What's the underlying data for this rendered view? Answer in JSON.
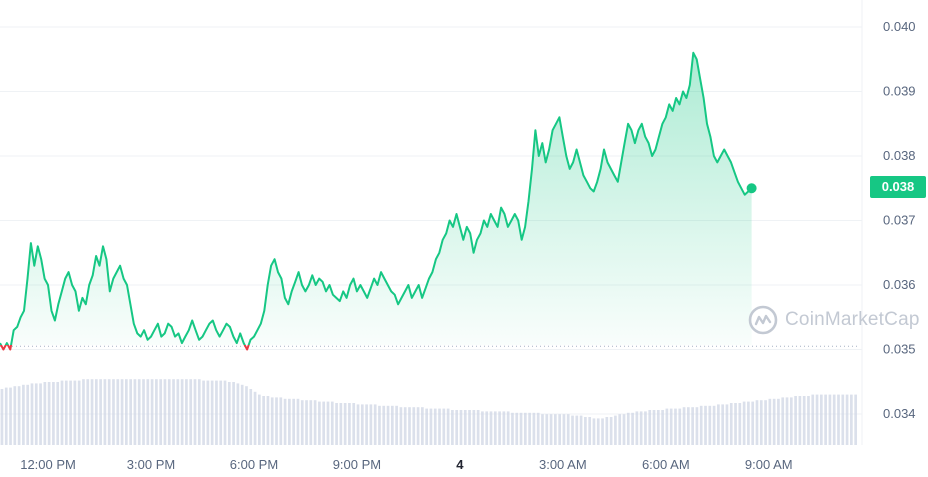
{
  "chart_data": {
    "type": "line",
    "title": "",
    "xlabel": "",
    "ylabel": "",
    "ylim": [
      0.0335,
      0.0405
    ],
    "baseline": 0.03505,
    "y_ticks": [
      "0.040",
      "0.039",
      "0.038",
      "0.037",
      "0.036",
      "0.035",
      "0.034"
    ],
    "x_ticks": [
      {
        "label": "12:00 PM",
        "x": 12,
        "bold": false
      },
      {
        "label": "3:00 PM",
        "x": 15,
        "bold": false
      },
      {
        "label": "6:00 PM",
        "x": 18,
        "bold": false
      },
      {
        "label": "9:00 PM",
        "x": 21,
        "bold": false
      },
      {
        "label": "4",
        "x": 24,
        "bold": true
      },
      {
        "label": "3:00 AM",
        "x": 27,
        "bold": false
      },
      {
        "label": "6:00 AM",
        "x": 30,
        "bold": false
      },
      {
        "label": "9:00 AM",
        "x": 33,
        "bold": false
      }
    ],
    "x_range": [
      10.6,
      35.6
    ],
    "last_price_label": "0.038",
    "colors": {
      "up": "#16c784",
      "down": "#ea3943",
      "grid": "#eff2f5",
      "volume": "#cfd6e4"
    },
    "series": [
      {
        "values": [
          [
            10.6,
            0.0351
          ],
          [
            10.7,
            0.035
          ],
          [
            10.8,
            0.0351
          ],
          [
            10.9,
            0.035
          ],
          [
            11.0,
            0.0353
          ],
          [
            11.1,
            0.03535
          ],
          [
            11.2,
            0.0355
          ],
          [
            11.3,
            0.0356
          ],
          [
            11.4,
            0.0361
          ],
          [
            11.5,
            0.03665
          ],
          [
            11.6,
            0.0363
          ],
          [
            11.7,
            0.0366
          ],
          [
            11.8,
            0.0364
          ],
          [
            11.9,
            0.0361
          ],
          [
            12.0,
            0.036
          ],
          [
            12.1,
            0.0356
          ],
          [
            12.2,
            0.03545
          ],
          [
            12.3,
            0.0357
          ],
          [
            12.4,
            0.0359
          ],
          [
            12.5,
            0.0361
          ],
          [
            12.6,
            0.0362
          ],
          [
            12.7,
            0.036
          ],
          [
            12.8,
            0.0359
          ],
          [
            12.9,
            0.0356
          ],
          [
            13.0,
            0.0358
          ],
          [
            13.1,
            0.0357
          ],
          [
            13.2,
            0.036
          ],
          [
            13.3,
            0.03615
          ],
          [
            13.4,
            0.03645
          ],
          [
            13.5,
            0.0363
          ],
          [
            13.6,
            0.0366
          ],
          [
            13.7,
            0.0364
          ],
          [
            13.8,
            0.0359
          ],
          [
            13.9,
            0.0361
          ],
          [
            14.0,
            0.0362
          ],
          [
            14.1,
            0.0363
          ],
          [
            14.2,
            0.0361
          ],
          [
            14.3,
            0.036
          ],
          [
            14.4,
            0.0357
          ],
          [
            14.5,
            0.0354
          ],
          [
            14.6,
            0.03525
          ],
          [
            14.7,
            0.0352
          ],
          [
            14.8,
            0.0353
          ],
          [
            14.9,
            0.03515
          ],
          [
            15.0,
            0.0352
          ],
          [
            15.1,
            0.0353
          ],
          [
            15.2,
            0.0354
          ],
          [
            15.3,
            0.0352
          ],
          [
            15.4,
            0.03525
          ],
          [
            15.5,
            0.0354
          ],
          [
            15.6,
            0.03535
          ],
          [
            15.7,
            0.0352
          ],
          [
            15.8,
            0.03525
          ],
          [
            15.9,
            0.0351
          ],
          [
            16.0,
            0.0352
          ],
          [
            16.1,
            0.0353
          ],
          [
            16.2,
            0.03545
          ],
          [
            16.3,
            0.0353
          ],
          [
            16.4,
            0.03515
          ],
          [
            16.5,
            0.0352
          ],
          [
            16.6,
            0.0353
          ],
          [
            16.7,
            0.0354
          ],
          [
            16.8,
            0.03545
          ],
          [
            16.9,
            0.0353
          ],
          [
            17.0,
            0.0352
          ],
          [
            17.1,
            0.0353
          ],
          [
            17.2,
            0.0354
          ],
          [
            17.3,
            0.03535
          ],
          [
            17.4,
            0.0352
          ],
          [
            17.5,
            0.0351
          ],
          [
            17.6,
            0.03525
          ],
          [
            17.7,
            0.0351
          ],
          [
            17.8,
            0.035
          ],
          [
            17.9,
            0.03515
          ],
          [
            18.0,
            0.0352
          ],
          [
            18.1,
            0.0353
          ],
          [
            18.2,
            0.0354
          ],
          [
            18.3,
            0.0356
          ],
          [
            18.4,
            0.036
          ],
          [
            18.5,
            0.0363
          ],
          [
            18.6,
            0.0364
          ],
          [
            18.7,
            0.0362
          ],
          [
            18.8,
            0.0361
          ],
          [
            18.9,
            0.0358
          ],
          [
            19.0,
            0.0357
          ],
          [
            19.1,
            0.0359
          ],
          [
            19.2,
            0.03605
          ],
          [
            19.3,
            0.0362
          ],
          [
            19.4,
            0.036
          ],
          [
            19.5,
            0.0359
          ],
          [
            19.6,
            0.036
          ],
          [
            19.7,
            0.03615
          ],
          [
            19.8,
            0.036
          ],
          [
            19.9,
            0.0361
          ],
          [
            20.0,
            0.03605
          ],
          [
            20.1,
            0.0359
          ],
          [
            20.2,
            0.036
          ],
          [
            20.3,
            0.03585
          ],
          [
            20.4,
            0.0358
          ],
          [
            20.5,
            0.03575
          ],
          [
            20.6,
            0.0359
          ],
          [
            20.7,
            0.0358
          ],
          [
            20.8,
            0.036
          ],
          [
            20.9,
            0.0361
          ],
          [
            21.0,
            0.0359
          ],
          [
            21.1,
            0.036
          ],
          [
            21.2,
            0.0359
          ],
          [
            21.3,
            0.0358
          ],
          [
            21.4,
            0.03595
          ],
          [
            21.5,
            0.0361
          ],
          [
            21.6,
            0.036
          ],
          [
            21.7,
            0.0362
          ],
          [
            21.8,
            0.0361
          ],
          [
            21.9,
            0.036
          ],
          [
            22.0,
            0.0359
          ],
          [
            22.1,
            0.03585
          ],
          [
            22.2,
            0.0357
          ],
          [
            22.3,
            0.0358
          ],
          [
            22.4,
            0.0359
          ],
          [
            22.5,
            0.036
          ],
          [
            22.6,
            0.0358
          ],
          [
            22.7,
            0.0359
          ],
          [
            22.8,
            0.036
          ],
          [
            22.9,
            0.0358
          ],
          [
            23.0,
            0.03595
          ],
          [
            23.1,
            0.0361
          ],
          [
            23.2,
            0.0362
          ],
          [
            23.3,
            0.0364
          ],
          [
            23.4,
            0.0365
          ],
          [
            23.5,
            0.0367
          ],
          [
            23.6,
            0.0368
          ],
          [
            23.7,
            0.037
          ],
          [
            23.8,
            0.0369
          ],
          [
            23.9,
            0.0371
          ],
          [
            24.0,
            0.0369
          ],
          [
            24.1,
            0.0367
          ],
          [
            24.2,
            0.0369
          ],
          [
            24.3,
            0.0368
          ],
          [
            24.4,
            0.0365
          ],
          [
            24.5,
            0.0367
          ],
          [
            24.6,
            0.0368
          ],
          [
            24.7,
            0.037
          ],
          [
            24.8,
            0.0369
          ],
          [
            24.9,
            0.0371
          ],
          [
            25.0,
            0.037
          ],
          [
            25.1,
            0.0369
          ],
          [
            25.2,
            0.0372
          ],
          [
            25.3,
            0.0371
          ],
          [
            25.4,
            0.0369
          ],
          [
            25.5,
            0.037
          ],
          [
            25.6,
            0.0371
          ],
          [
            25.7,
            0.037
          ],
          [
            25.8,
            0.0367
          ],
          [
            25.9,
            0.0369
          ],
          [
            26.0,
            0.0373
          ],
          [
            26.1,
            0.0378
          ],
          [
            26.2,
            0.0384
          ],
          [
            26.3,
            0.038
          ],
          [
            26.4,
            0.0382
          ],
          [
            26.5,
            0.0379
          ],
          [
            26.6,
            0.0381
          ],
          [
            26.7,
            0.0384
          ],
          [
            26.8,
            0.0385
          ],
          [
            26.9,
            0.0386
          ],
          [
            27.0,
            0.0383
          ],
          [
            27.1,
            0.038
          ],
          [
            27.2,
            0.0378
          ],
          [
            27.3,
            0.0379
          ],
          [
            27.4,
            0.0381
          ],
          [
            27.5,
            0.0379
          ],
          [
            27.6,
            0.0377
          ],
          [
            27.7,
            0.0376
          ],
          [
            27.8,
            0.0375
          ],
          [
            27.9,
            0.03745
          ],
          [
            28.0,
            0.0376
          ],
          [
            28.1,
            0.0378
          ],
          [
            28.2,
            0.0381
          ],
          [
            28.3,
            0.0379
          ],
          [
            28.4,
            0.0378
          ],
          [
            28.5,
            0.0377
          ],
          [
            28.6,
            0.0376
          ],
          [
            28.7,
            0.0379
          ],
          [
            28.8,
            0.0382
          ],
          [
            28.9,
            0.0385
          ],
          [
            29.0,
            0.0384
          ],
          [
            29.1,
            0.0382
          ],
          [
            29.2,
            0.0384
          ],
          [
            29.3,
            0.0385
          ],
          [
            29.4,
            0.0383
          ],
          [
            29.5,
            0.0382
          ],
          [
            29.6,
            0.038
          ],
          [
            29.7,
            0.0381
          ],
          [
            29.8,
            0.0383
          ],
          [
            29.9,
            0.0385
          ],
          [
            30.0,
            0.0386
          ],
          [
            30.1,
            0.0388
          ],
          [
            30.2,
            0.0387
          ],
          [
            30.3,
            0.0389
          ],
          [
            30.4,
            0.0388
          ],
          [
            30.5,
            0.039
          ],
          [
            30.6,
            0.0389
          ],
          [
            30.7,
            0.0391
          ],
          [
            30.8,
            0.0396
          ],
          [
            30.9,
            0.0395
          ],
          [
            31.0,
            0.0392
          ],
          [
            31.1,
            0.0389
          ],
          [
            31.2,
            0.0385
          ],
          [
            31.3,
            0.0383
          ],
          [
            31.4,
            0.038
          ],
          [
            31.5,
            0.0379
          ],
          [
            31.6,
            0.038
          ],
          [
            31.7,
            0.0381
          ],
          [
            31.8,
            0.038
          ],
          [
            31.9,
            0.0379
          ],
          [
            32.0,
            0.03775
          ],
          [
            32.1,
            0.0376
          ],
          [
            32.2,
            0.0375
          ],
          [
            32.3,
            0.0374
          ],
          [
            32.4,
            0.03745
          ],
          [
            32.5,
            0.0375
          ]
        ]
      }
    ],
    "volume": [
      0.4,
      0.41,
      0.41,
      0.42,
      0.42,
      0.43,
      0.43,
      0.44,
      0.44,
      0.44,
      0.45,
      0.45,
      0.45,
      0.45,
      0.46,
      0.46,
      0.46,
      0.46,
      0.46,
      0.47,
      0.47,
      0.47,
      0.47,
      0.47,
      0.47,
      0.47,
      0.47,
      0.47,
      0.47,
      0.47,
      0.47,
      0.47,
      0.47,
      0.47,
      0.47,
      0.47,
      0.47,
      0.47,
      0.47,
      0.47,
      0.47,
      0.47,
      0.47,
      0.47,
      0.47,
      0.47,
      0.47,
      0.46,
      0.46,
      0.46,
      0.46,
      0.46,
      0.46,
      0.45,
      0.45,
      0.44,
      0.43,
      0.42,
      0.4,
      0.38,
      0.36,
      0.35,
      0.35,
      0.34,
      0.34,
      0.34,
      0.33,
      0.33,
      0.33,
      0.33,
      0.32,
      0.32,
      0.32,
      0.32,
      0.31,
      0.31,
      0.31,
      0.31,
      0.3,
      0.3,
      0.3,
      0.3,
      0.3,
      0.29,
      0.29,
      0.29,
      0.29,
      0.29,
      0.28,
      0.28,
      0.28,
      0.28,
      0.28,
      0.27,
      0.27,
      0.27,
      0.27,
      0.27,
      0.27,
      0.26,
      0.26,
      0.26,
      0.26,
      0.26,
      0.26,
      0.25,
      0.25,
      0.25,
      0.25,
      0.25,
      0.25,
      0.25,
      0.24,
      0.24,
      0.24,
      0.24,
      0.24,
      0.24,
      0.24,
      0.23,
      0.23,
      0.23,
      0.23,
      0.23,
      0.23,
      0.23,
      0.22,
      0.22,
      0.22,
      0.22,
      0.22,
      0.22,
      0.22,
      0.21,
      0.21,
      0.21,
      0.2,
      0.2,
      0.19,
      0.19,
      0.19,
      0.2,
      0.2,
      0.21,
      0.22,
      0.22,
      0.23,
      0.23,
      0.24,
      0.24,
      0.24,
      0.25,
      0.25,
      0.25,
      0.25,
      0.26,
      0.26,
      0.26,
      0.26,
      0.27,
      0.27,
      0.27,
      0.27,
      0.28,
      0.28,
      0.28,
      0.28,
      0.29,
      0.29,
      0.29,
      0.3,
      0.3,
      0.3,
      0.31,
      0.31,
      0.31,
      0.32,
      0.32,
      0.32,
      0.33,
      0.33,
      0.33,
      0.34,
      0.34,
      0.34,
      0.35,
      0.35,
      0.35,
      0.35,
      0.36,
      0.36,
      0.36,
      0.36,
      0.36,
      0.36,
      0.36,
      0.36,
      0.36,
      0.36,
      0.36
    ]
  },
  "watermark": {
    "text": "CoinMarketCap"
  }
}
